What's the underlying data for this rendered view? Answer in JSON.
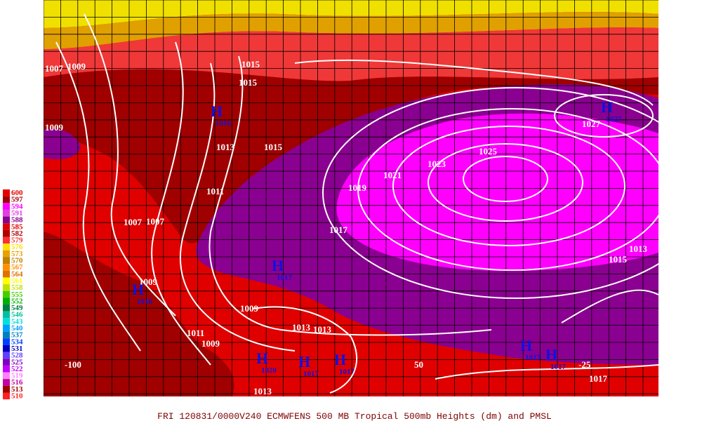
{
  "caption": "FRI 120831/0000V240  ECMWFENS  500 MB Tropical 500mb Heights (dm) and PMSL",
  "legend": [
    {
      "label": "600",
      "color": "#e80000"
    },
    {
      "label": "597",
      "color": "#a00000"
    },
    {
      "label": "594",
      "color": "#ff00ff"
    },
    {
      "label": "591",
      "color": "#e040e0"
    },
    {
      "label": "588",
      "color": "#8a0090"
    },
    {
      "label": "585",
      "color": "#e00000"
    },
    {
      "label": "582",
      "color": "#b00000"
    },
    {
      "label": "579",
      "color": "#ff3030"
    },
    {
      "label": "576",
      "color": "#ffe000"
    },
    {
      "label": "573",
      "color": "#e8a000"
    },
    {
      "label": "570",
      "color": "#c08000"
    },
    {
      "label": "567",
      "color": "#ff9000"
    },
    {
      "label": "564",
      "color": "#e07000"
    },
    {
      "label": "561",
      "color": "#ffff00"
    },
    {
      "label": "558",
      "color": "#c0e000"
    },
    {
      "label": "555",
      "color": "#40d000"
    },
    {
      "label": "552",
      "color": "#00b000"
    },
    {
      "label": "549",
      "color": "#008040"
    },
    {
      "label": "546",
      "color": "#00c0a0"
    },
    {
      "label": "543",
      "color": "#00e0e0"
    },
    {
      "label": "540",
      "color": "#00a0ff"
    },
    {
      "label": "537",
      "color": "#0080c0"
    },
    {
      "label": "534",
      "color": "#0040ff"
    },
    {
      "label": "531",
      "color": "#0000c0"
    },
    {
      "label": "528",
      "color": "#6040ff"
    },
    {
      "label": "525",
      "color": "#8000c0"
    },
    {
      "label": "522",
      "color": "#c000ff"
    },
    {
      "label": "519",
      "color": "#ff80ff"
    },
    {
      "label": "516",
      "color": "#c000a0"
    },
    {
      "label": "513",
      "color": "#a00000"
    },
    {
      "label": "510",
      "color": "#ff2020"
    }
  ],
  "longitude_labels": [
    "-100",
    "50",
    "-25"
  ],
  "isobar_labels": [
    "1007",
    "1009",
    "1015",
    "1015",
    "1009",
    "1013",
    "1015",
    "1025",
    "1027",
    "1021",
    "1023",
    "1011",
    "1019",
    "1007",
    "1007",
    "1017",
    "1013",
    "1015",
    "1009",
    "1009",
    "1009",
    "1013",
    "1013",
    "1013",
    "1017",
    "1011"
  ],
  "highs": [
    {
      "label": "H",
      "pressure": "1016"
    },
    {
      "label": "H",
      "pressure": "1017"
    },
    {
      "label": "H",
      "pressure": "1010"
    },
    {
      "label": "H",
      "pressure": "1017"
    },
    {
      "label": "H",
      "pressure": "1017"
    },
    {
      "label": "H",
      "pressure": "1020"
    },
    {
      "label": "H",
      "pressure": "1017"
    },
    {
      "label": "H",
      "pressure": "1017"
    },
    {
      "label": "H",
      "pressure": "1027"
    }
  ]
}
